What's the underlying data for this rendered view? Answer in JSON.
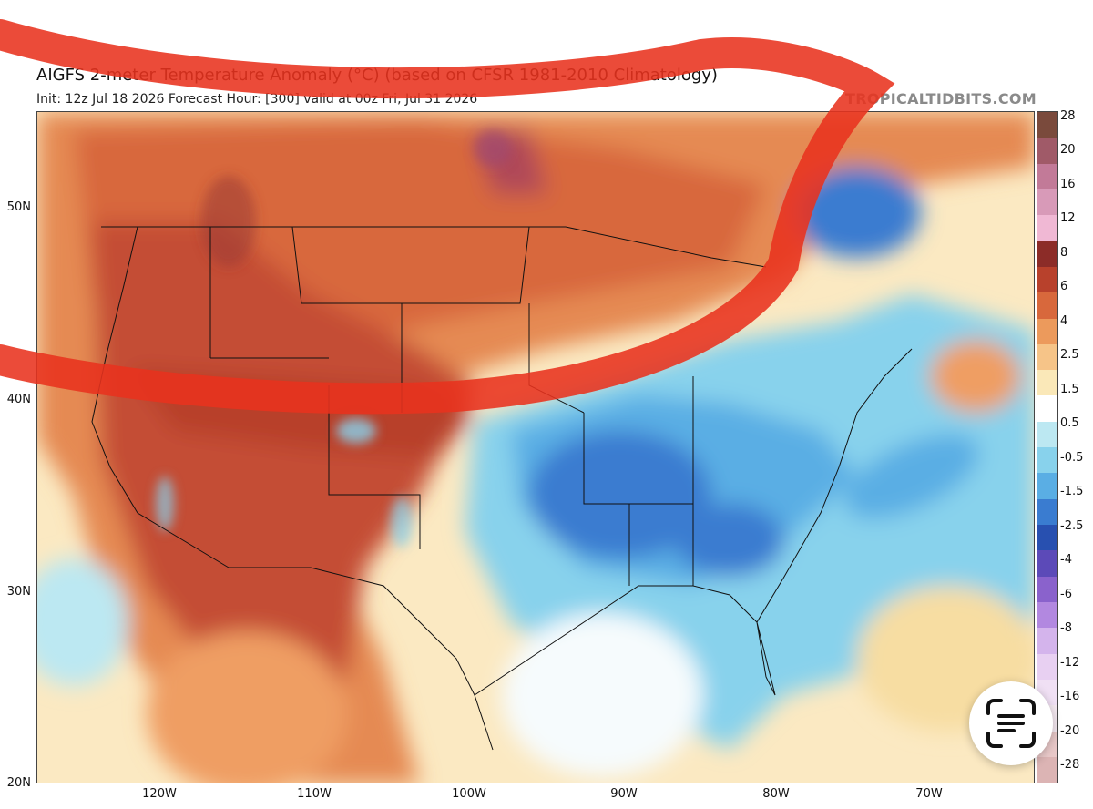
{
  "map": {
    "title": "AIGFS 2-meter Temperature Anomaly (°C) (based on CFSR 1981-2010 Climatology)",
    "subtitle": "Init: 12z Jul 18 2026   Forecast Hour: [300]   valid at 00z Fri, Jul 31 2026",
    "watermark": "TROPICALTIDBITS.COM",
    "lat_labels": [
      "50N",
      "40N",
      "30N",
      "20N"
    ],
    "lon_labels": [
      "120W",
      "110W",
      "100W",
      "90W",
      "80W",
      "70W"
    ]
  },
  "colorbar": {
    "labels": [
      "28",
      "20",
      "16",
      "12",
      "8",
      "6",
      "4",
      "2.5",
      "1.5",
      "0.5",
      "-0.5",
      "-1.5",
      "-2.5",
      "-4",
      "-6",
      "-8",
      "-12",
      "-16",
      "-20",
      "-28"
    ],
    "colors": [
      "#7a4a3c",
      "#a05a68",
      "#c27a98",
      "#d89ab8",
      "#f0b8d4",
      "#8c2c28",
      "#b8412c",
      "#d8683c",
      "#ec9a5c",
      "#f6c488",
      "#fae8b8",
      "#ffffff",
      "#bce8f2",
      "#88d2ec",
      "#5aaee4",
      "#3a7cd0",
      "#2850b0",
      "#5c4ab8",
      "#8a62cc",
      "#b288e0",
      "#d4b4ec",
      "#e8d0f2",
      "#f0e0f4",
      "#f4e8f0",
      "#e8c8c8",
      "#dcb4b4"
    ]
  },
  "overlay": {
    "stroke_color": "#e8321e",
    "scan_icon": "text-scan-icon"
  }
}
